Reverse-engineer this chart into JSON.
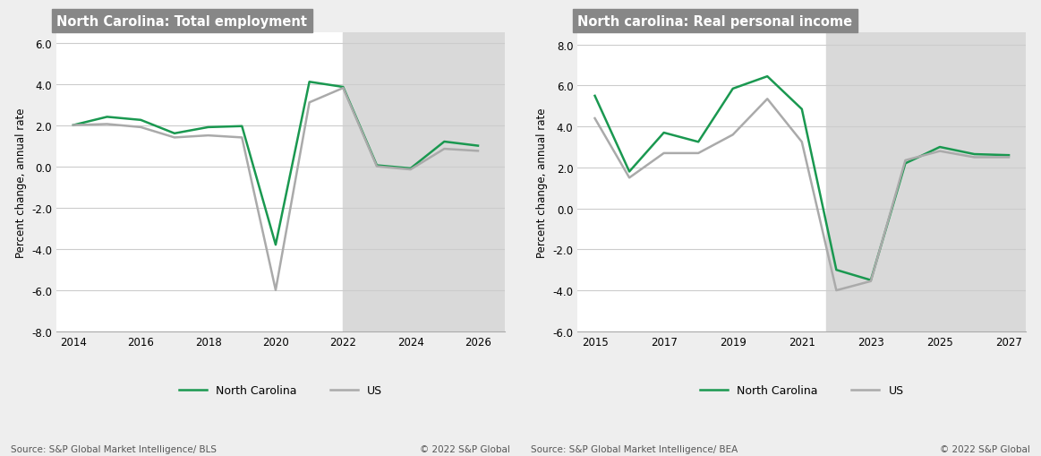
{
  "chart1": {
    "title": "North Carolina: Total employment",
    "ylabel": "Percent change, annual rate",
    "source": "Source: S&P Global Market Intelligence/ BLS",
    "copyright": "© 2022 S&P Global",
    "xlim": [
      2013.5,
      2026.8
    ],
    "ylim": [
      -8.0,
      6.5
    ],
    "yticks": [
      -8.0,
      -6.0,
      -4.0,
      -2.0,
      0.0,
      2.0,
      4.0,
      6.0
    ],
    "xticks": [
      2014,
      2016,
      2018,
      2020,
      2022,
      2024,
      2026
    ],
    "shade_start": 2022.0,
    "shade_end": 2026.8,
    "nc_x": [
      2014,
      2015,
      2016,
      2017,
      2018,
      2019,
      2020,
      2021,
      2022,
      2023,
      2024,
      2025,
      2026
    ],
    "nc_y": [
      2.0,
      2.4,
      2.25,
      1.6,
      1.9,
      1.95,
      -3.8,
      4.1,
      3.85,
      0.05,
      -0.1,
      1.2,
      1.0
    ],
    "us_x": [
      2014,
      2015,
      2016,
      2017,
      2018,
      2019,
      2020,
      2021,
      2022,
      2023,
      2024,
      2025,
      2026
    ],
    "us_y": [
      2.0,
      2.05,
      1.9,
      1.4,
      1.5,
      1.4,
      -6.0,
      3.1,
      3.8,
      0.0,
      -0.15,
      0.85,
      0.75
    ],
    "nc_color": "#1a9850",
    "us_color": "#aaaaaa",
    "line_width": 1.8,
    "shade_color": "#d9d9d9",
    "title_bg": "#878787",
    "title_color": "white"
  },
  "chart2": {
    "title": "North carolina: Real personal income",
    "ylabel": "Percent change, annual rate",
    "source": "Source: S&P Global Market Intelligence/ BEA",
    "copyright": "© 2022 S&P Global",
    "xlim": [
      2014.5,
      2027.5
    ],
    "ylim": [
      -6.0,
      8.6
    ],
    "yticks": [
      -6.0,
      -4.0,
      -2.0,
      0.0,
      2.0,
      4.0,
      6.0,
      8.0
    ],
    "xticks": [
      2015,
      2017,
      2019,
      2021,
      2023,
      2025,
      2027
    ],
    "shade_start": 2021.7,
    "shade_end": 2027.5,
    "nc_x": [
      2015,
      2016,
      2017,
      2018,
      2019,
      2020,
      2021,
      2022,
      2023,
      2024,
      2025,
      2026,
      2027
    ],
    "nc_y": [
      5.5,
      1.8,
      3.7,
      3.25,
      5.85,
      6.45,
      4.85,
      -3.0,
      -3.5,
      2.2,
      3.0,
      2.65,
      2.6
    ],
    "us_x": [
      2015,
      2016,
      2017,
      2018,
      2019,
      2020,
      2021,
      2022,
      2023,
      2024,
      2025,
      2026,
      2027
    ],
    "us_y": [
      4.4,
      1.5,
      2.7,
      2.7,
      3.6,
      5.35,
      3.25,
      -4.0,
      -3.55,
      2.35,
      2.8,
      2.5,
      2.5
    ],
    "nc_color": "#1a9850",
    "us_color": "#aaaaaa",
    "line_width": 1.8,
    "shade_color": "#d9d9d9",
    "title_bg": "#878787",
    "title_color": "white"
  },
  "legend_nc_label": "North Carolina",
  "legend_us_label": "US",
  "fig_bg": "#eeeeee",
  "plot_bg": "white",
  "title_fontsize": 10.5,
  "label_fontsize": 8.5,
  "tick_fontsize": 8.5,
  "source_fontsize": 7.5,
  "legend_fontsize": 9
}
